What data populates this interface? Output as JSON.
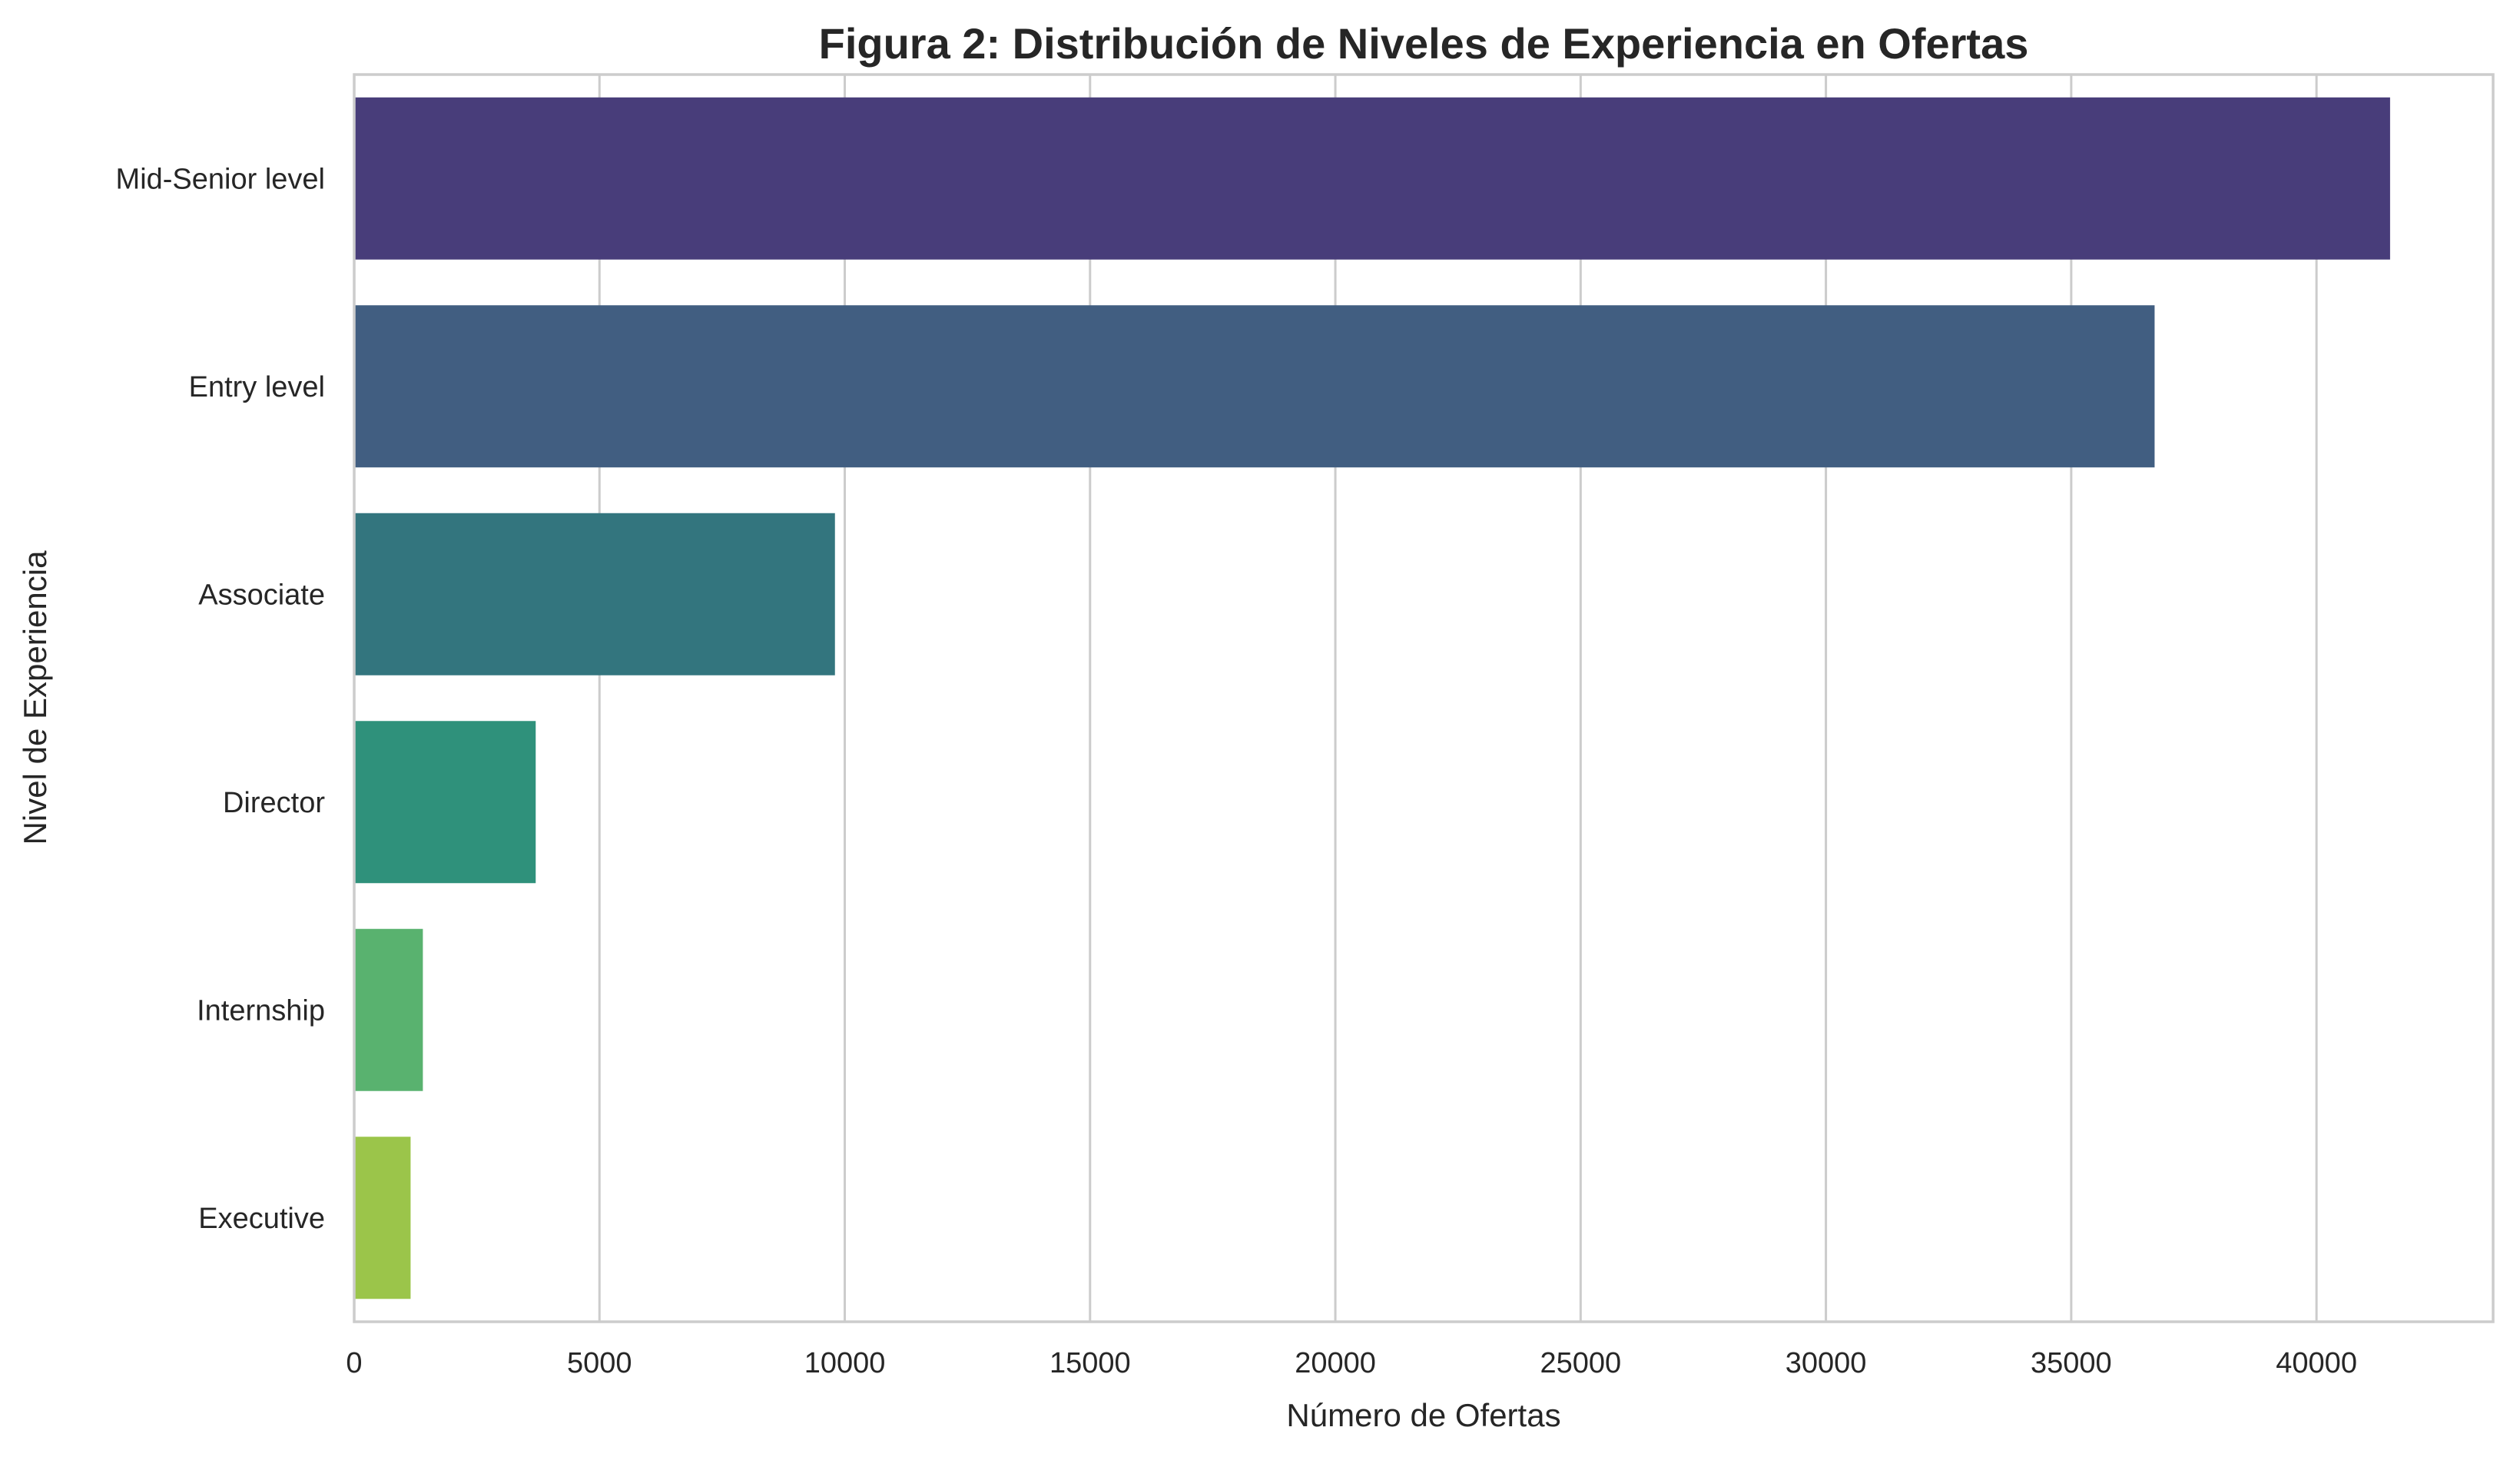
{
  "chart_data": {
    "type": "bar",
    "orientation": "horizontal",
    "title": "Figura 2: Distribución de Niveles de Experiencia en Ofertas",
    "xlabel": "Número de Ofertas",
    "ylabel": "Nivel de Experiencia",
    "categories": [
      "Mid-Senior level",
      "Entry level",
      "Associate",
      "Director",
      "Internship",
      "Executive"
    ],
    "values": [
      41500,
      36700,
      9800,
      3700,
      1400,
      1150
    ],
    "colors": [
      "#483d7a",
      "#415e81",
      "#33757e",
      "#2f917b",
      "#59b26f",
      "#9bc54a"
    ],
    "xlim": [
      0,
      43600
    ],
    "xticks": [
      0,
      5000,
      10000,
      15000,
      20000,
      25000,
      30000,
      35000,
      40000
    ],
    "xtick_labels": [
      "0",
      "5000",
      "10000",
      "15000",
      "20000",
      "25000",
      "30000",
      "35000",
      "40000"
    ],
    "grid": "vertical",
    "legend": "none"
  }
}
